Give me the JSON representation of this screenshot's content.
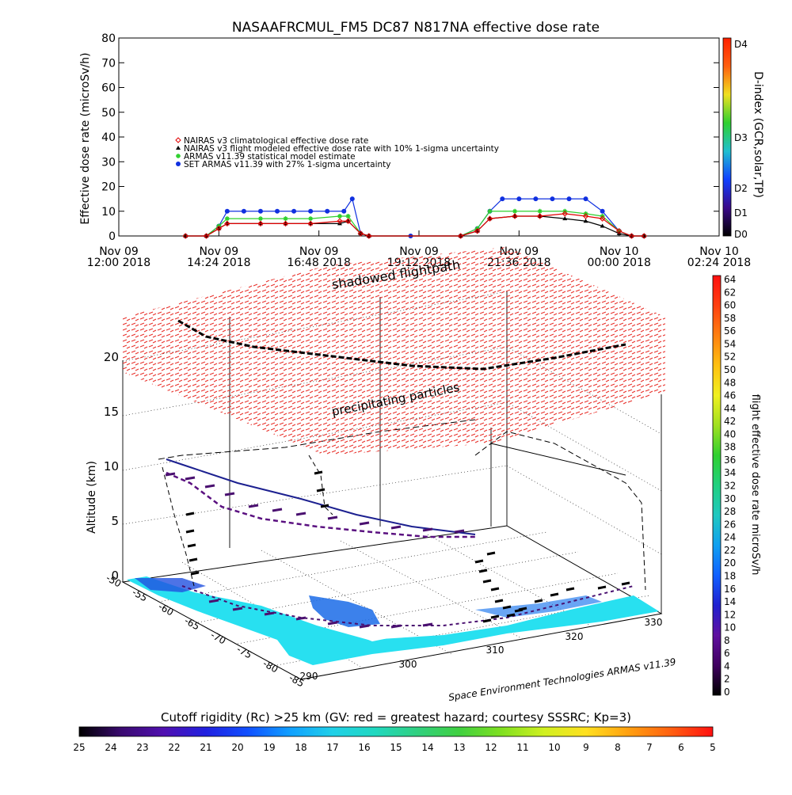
{
  "chart_data": [
    {
      "type": "line",
      "title": "NASAAFRCMUL_FM5 DC87 N817NA effective dose rate",
      "ylabel": "Effective dose rate (microSv/h)",
      "ylim": [
        0,
        80
      ],
      "yticks": [
        "0",
        "10",
        "20",
        "30",
        "40",
        "50",
        "60",
        "70",
        "80"
      ],
      "x_labels": [
        {
          "top": "Nov 09",
          "bottom": "12:00 2018"
        },
        {
          "top": "Nov 09",
          "bottom": "14:24 2018"
        },
        {
          "top": "Nov 09",
          "bottom": "16:48 2018"
        },
        {
          "top": "Nov 09",
          "bottom": "19:12 2018"
        },
        {
          "top": "Nov 09",
          "bottom": "21:36 2018"
        },
        {
          "top": "Nov 10",
          "bottom": "00:00 2018"
        },
        {
          "top": "Nov 10",
          "bottom": "02:24 2018"
        }
      ],
      "x_range_hours": [
        0,
        14.4
      ],
      "legend_position": "upper-left",
      "series": [
        {
          "name": "NAIRAS v3 climatological effective dose rate",
          "marker": "diamond",
          "color": "#e00000",
          "points": [
            [
              1.6,
              0
            ],
            [
              2.1,
              0
            ],
            [
              2.4,
              3
            ],
            [
              2.6,
              5
            ],
            [
              3.4,
              5
            ],
            [
              4.0,
              5
            ],
            [
              4.6,
              5
            ],
            [
              5.3,
              6
            ],
            [
              5.5,
              6
            ],
            [
              5.8,
              1
            ],
            [
              6.0,
              0
            ],
            [
              8.2,
              0
            ],
            [
              8.6,
              2
            ],
            [
              8.9,
              7
            ],
            [
              9.5,
              8
            ],
            [
              10.1,
              8
            ],
            [
              10.7,
              9
            ],
            [
              11.2,
              8
            ],
            [
              11.6,
              7
            ],
            [
              12.0,
              2
            ],
            [
              12.3,
              0
            ],
            [
              12.6,
              0
            ]
          ]
        },
        {
          "name": "NAIRAS v3 flight modeled effective dose rate with 10% 1-sigma uncertainty",
          "marker": "triangle",
          "color": "#000000",
          "points": [
            [
              1.6,
              0
            ],
            [
              2.1,
              0
            ],
            [
              2.4,
              3
            ],
            [
              2.6,
              5
            ],
            [
              3.4,
              5
            ],
            [
              4.0,
              5
            ],
            [
              4.6,
              5
            ],
            [
              5.3,
              5
            ],
            [
              5.5,
              6
            ],
            [
              5.8,
              1
            ],
            [
              6.0,
              0
            ],
            [
              8.2,
              0
            ],
            [
              8.6,
              2
            ],
            [
              8.9,
              7
            ],
            [
              9.5,
              8
            ],
            [
              10.1,
              8
            ],
            [
              10.7,
              7
            ],
            [
              11.2,
              6
            ],
            [
              11.6,
              4
            ],
            [
              12.0,
              1
            ],
            [
              12.3,
              0
            ],
            [
              12.6,
              0
            ]
          ]
        },
        {
          "name": "ARMAS v11.39 statistical model estimate",
          "marker": "asterisk",
          "color": "#2ed02e",
          "points": [
            [
              1.6,
              0
            ],
            [
              2.1,
              0
            ],
            [
              2.4,
              4
            ],
            [
              2.6,
              7
            ],
            [
              3.4,
              7
            ],
            [
              4.0,
              7
            ],
            [
              4.6,
              7
            ],
            [
              5.3,
              8
            ],
            [
              5.5,
              8
            ],
            [
              5.8,
              1
            ],
            [
              6.0,
              0
            ],
            [
              8.2,
              0
            ],
            [
              8.6,
              3
            ],
            [
              8.9,
              10
            ],
            [
              9.5,
              10
            ],
            [
              10.1,
              10
            ],
            [
              10.7,
              10
            ],
            [
              11.2,
              9
            ],
            [
              11.6,
              8
            ],
            [
              12.0,
              2
            ],
            [
              12.3,
              0
            ],
            [
              12.6,
              0
            ]
          ]
        },
        {
          "name": "SET ARMAS v11.39 with 27% 1-sigma uncertainty",
          "marker": "circle",
          "color": "#1030e0",
          "points": [
            [
              1.6,
              0
            ],
            [
              2.1,
              0
            ],
            [
              2.4,
              4
            ],
            [
              2.6,
              10
            ],
            [
              3.0,
              10
            ],
            [
              3.4,
              10
            ],
            [
              3.8,
              10
            ],
            [
              4.2,
              10
            ],
            [
              4.6,
              10
            ],
            [
              5.0,
              10
            ],
            [
              5.4,
              10
            ],
            [
              5.6,
              15
            ],
            [
              5.8,
              1
            ],
            [
              6.0,
              0
            ],
            [
              7.0,
              0
            ],
            [
              8.2,
              0
            ],
            [
              8.6,
              3
            ],
            [
              8.9,
              10
            ],
            [
              9.2,
              15
            ],
            [
              9.6,
              15
            ],
            [
              10.0,
              15
            ],
            [
              10.4,
              15
            ],
            [
              10.8,
              15
            ],
            [
              11.2,
              15
            ],
            [
              11.6,
              10
            ],
            [
              12.0,
              2
            ],
            [
              12.3,
              0
            ],
            [
              12.6,
              0
            ]
          ]
        }
      ],
      "right_axis": {
        "label": "D-index (GCR,solar,TP)",
        "ticks": [
          "D0",
          "D1",
          "D2",
          "D3",
          "D4"
        ],
        "colors": [
          "#000000",
          "#3a0a8a",
          "#1040ff",
          "#20c0d0",
          "#30d030",
          "#f0e020",
          "#ff6010",
          "#ff2000"
        ]
      }
    },
    {
      "type": "scatter",
      "subtype": "3d-flight-track",
      "zlabel": "Altitude (km)",
      "zticks": [
        "0",
        "5",
        "10",
        "15",
        "20"
      ],
      "x_ticks": [
        "290",
        "300",
        "310",
        "320",
        "330"
      ],
      "y_ticks": [
        "-50",
        "-55",
        "-60",
        "-65",
        "-70",
        "-75",
        "-80",
        "-85"
      ],
      "annotations": [
        "shadowed flightpath",
        "precipitating particles"
      ],
      "credit": "Space Environment Technologies ARMAS v11.39",
      "colorbar_right": {
        "label": "flight effective dose rate microSv/h",
        "ticks": [
          "0",
          "2",
          "4",
          "6",
          "8",
          "10",
          "12",
          "14",
          "16",
          "18",
          "20",
          "22",
          "24",
          "26",
          "28",
          "30",
          "32",
          "34",
          "36",
          "38",
          "40",
          "42",
          "44",
          "46",
          "48",
          "50",
          "52",
          "54",
          "56",
          "58",
          "60",
          "62",
          "64"
        ],
        "colors": [
          "#000000",
          "#400060",
          "#6010a0",
          "#2020d0",
          "#1060ff",
          "#10a0f0",
          "#20c8c0",
          "#20d080",
          "#30d030",
          "#a0e020",
          "#f0f020",
          "#ffc010",
          "#ff8010",
          "#ff4010",
          "#ff1010"
        ]
      },
      "colorbar_bottom": {
        "label": "Cutoff rigidity (Rc) >25 km (GV: red = greatest hazard; courtesy SSSRC; Kp=3)",
        "ticks": [
          "25",
          "24",
          "23",
          "22",
          "21",
          "20",
          "19",
          "18",
          "17",
          "16",
          "15",
          "14",
          "13",
          "12",
          "11",
          "10",
          "9",
          "8",
          "7",
          "6",
          "5"
        ],
        "colors": [
          "#000000",
          "#3a0a70",
          "#5010b0",
          "#2020e0",
          "#1050ff",
          "#10a0ff",
          "#20d0e8",
          "#20d8c0",
          "#30d080",
          "#40d040",
          "#80e020",
          "#d0f020",
          "#ffe020",
          "#ffa010",
          "#ff6010",
          "#ff1010"
        ]
      }
    }
  ]
}
